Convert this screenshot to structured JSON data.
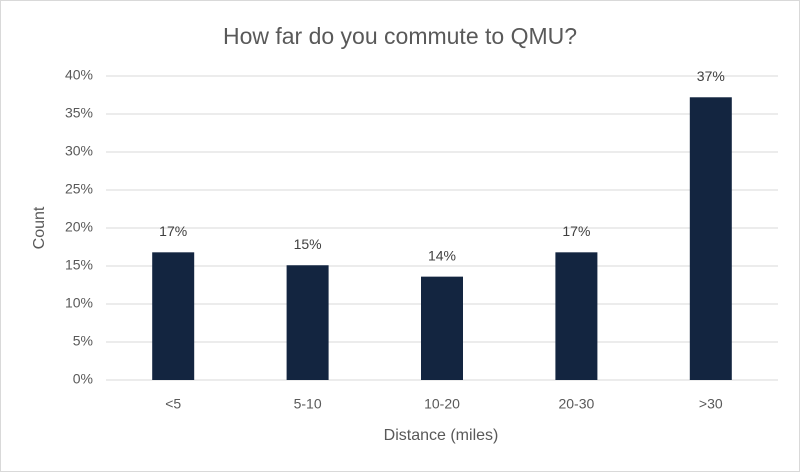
{
  "chart_data": {
    "type": "bar",
    "title": "How far do you commute to QMU?",
    "x_label": "Distance (miles)",
    "y_label": "Count",
    "categories": [
      "<5",
      "5-10",
      "10-20",
      "20-30",
      ">30"
    ],
    "values": [
      16.8,
      15.1,
      13.6,
      16.8,
      37.2
    ],
    "value_labels": [
      "17%",
      "15%",
      "14%",
      "17%",
      "37%"
    ],
    "color": "#132540",
    "ylim": [
      0,
      40
    ],
    "yticks": [
      {
        "value": 0,
        "label": "0%"
      },
      {
        "value": 5,
        "label": "5%"
      },
      {
        "value": 10,
        "label": "10%"
      },
      {
        "value": 15,
        "label": "15%"
      },
      {
        "value": 20,
        "label": "20%"
      },
      {
        "value": 25,
        "label": "25%"
      },
      {
        "value": 30,
        "label": "30%"
      },
      {
        "value": 35,
        "label": "35%"
      },
      {
        "value": 40,
        "label": "40%"
      }
    ],
    "grid": true
  }
}
